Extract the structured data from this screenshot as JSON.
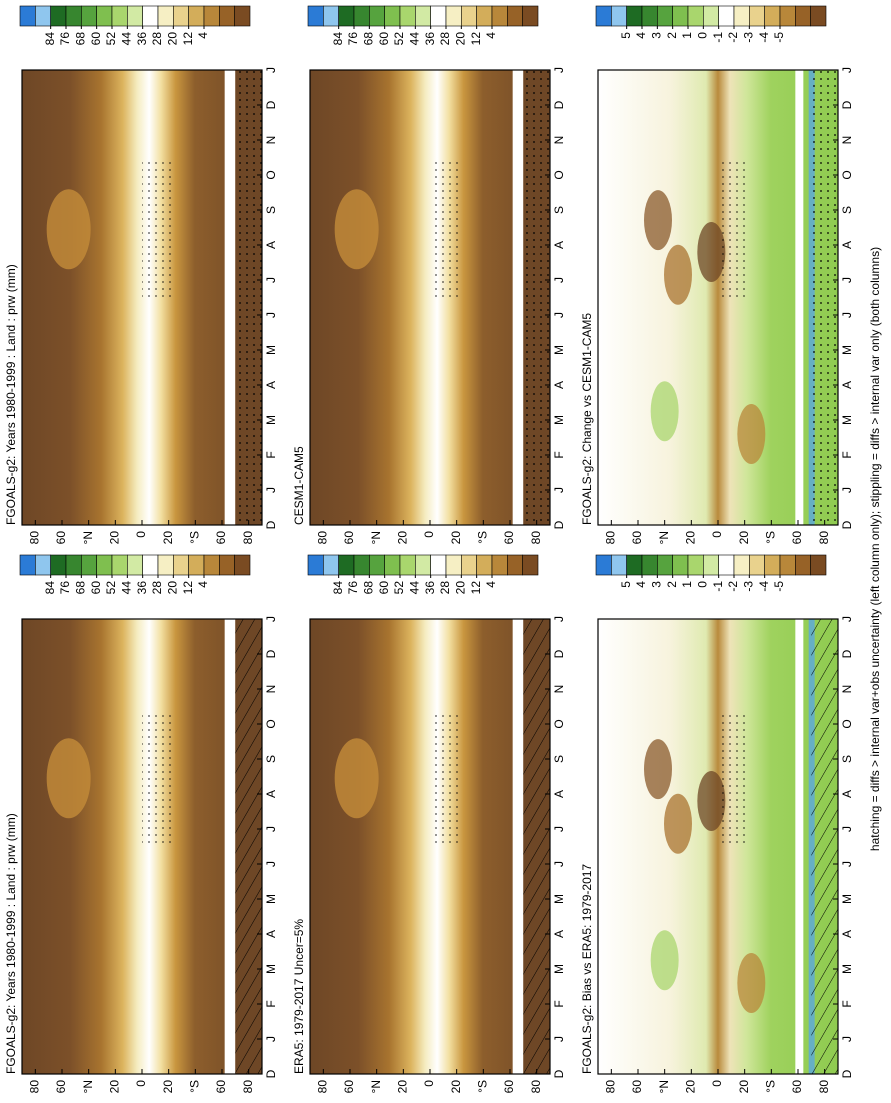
{
  "panels": [
    {
      "title": "FGOALS-g2: Years 1980-1999 : Land : prw (mm)",
      "field": "prw",
      "overlay": "hatch",
      "colorbar": [
        84,
        76,
        68,
        60,
        52,
        44,
        36,
        28,
        20,
        12,
        4
      ]
    },
    {
      "title": "FGOALS-g2: Years 1980-1999 : Land : prw (mm)",
      "field": "prw",
      "overlay": "stipple",
      "colorbar": [
        84,
        76,
        68,
        60,
        52,
        44,
        36,
        28,
        20,
        12,
        4
      ]
    },
    {
      "title": "ERA5: 1979-2017 Uncer=5%",
      "field": "prw",
      "overlay": "hatch",
      "colorbar": [
        84,
        76,
        68,
        60,
        52,
        44,
        36,
        28,
        20,
        12,
        4
      ]
    },
    {
      "title": "CESM1-CAM5",
      "field": "prw",
      "overlay": "stipple",
      "colorbar": [
        84,
        76,
        68,
        60,
        52,
        44,
        36,
        28,
        20,
        12,
        4
      ]
    },
    {
      "title": "FGOALS-g2: Bias vs ERA5: 1979-2017",
      "field": "diff",
      "overlay": "hatch",
      "colorbar": [
        5,
        4,
        3,
        2,
        1,
        0,
        -1,
        -2,
        -3,
        -4,
        -5
      ]
    },
    {
      "title": "FGOALS-g2: Change vs CESM1-CAM5",
      "field": "diff",
      "overlay": "stipple",
      "colorbar": [
        5,
        4,
        3,
        2,
        1,
        0,
        -1,
        -2,
        -3,
        -4,
        -5
      ]
    }
  ],
  "month_labels": [
    "D",
    "J",
    "F",
    "M",
    "A",
    "M",
    "J",
    "J",
    "A",
    "S",
    "O",
    "N",
    "D",
    "J"
  ],
  "lat_labels": [
    "80",
    "60",
    "°N",
    "20",
    "0",
    "20",
    "°S",
    "60",
    "80"
  ],
  "footnote": "hatching = diffs > internal var+obs uncertainty (left column only); stippling = diffs > internal var only (both columns)"
}
